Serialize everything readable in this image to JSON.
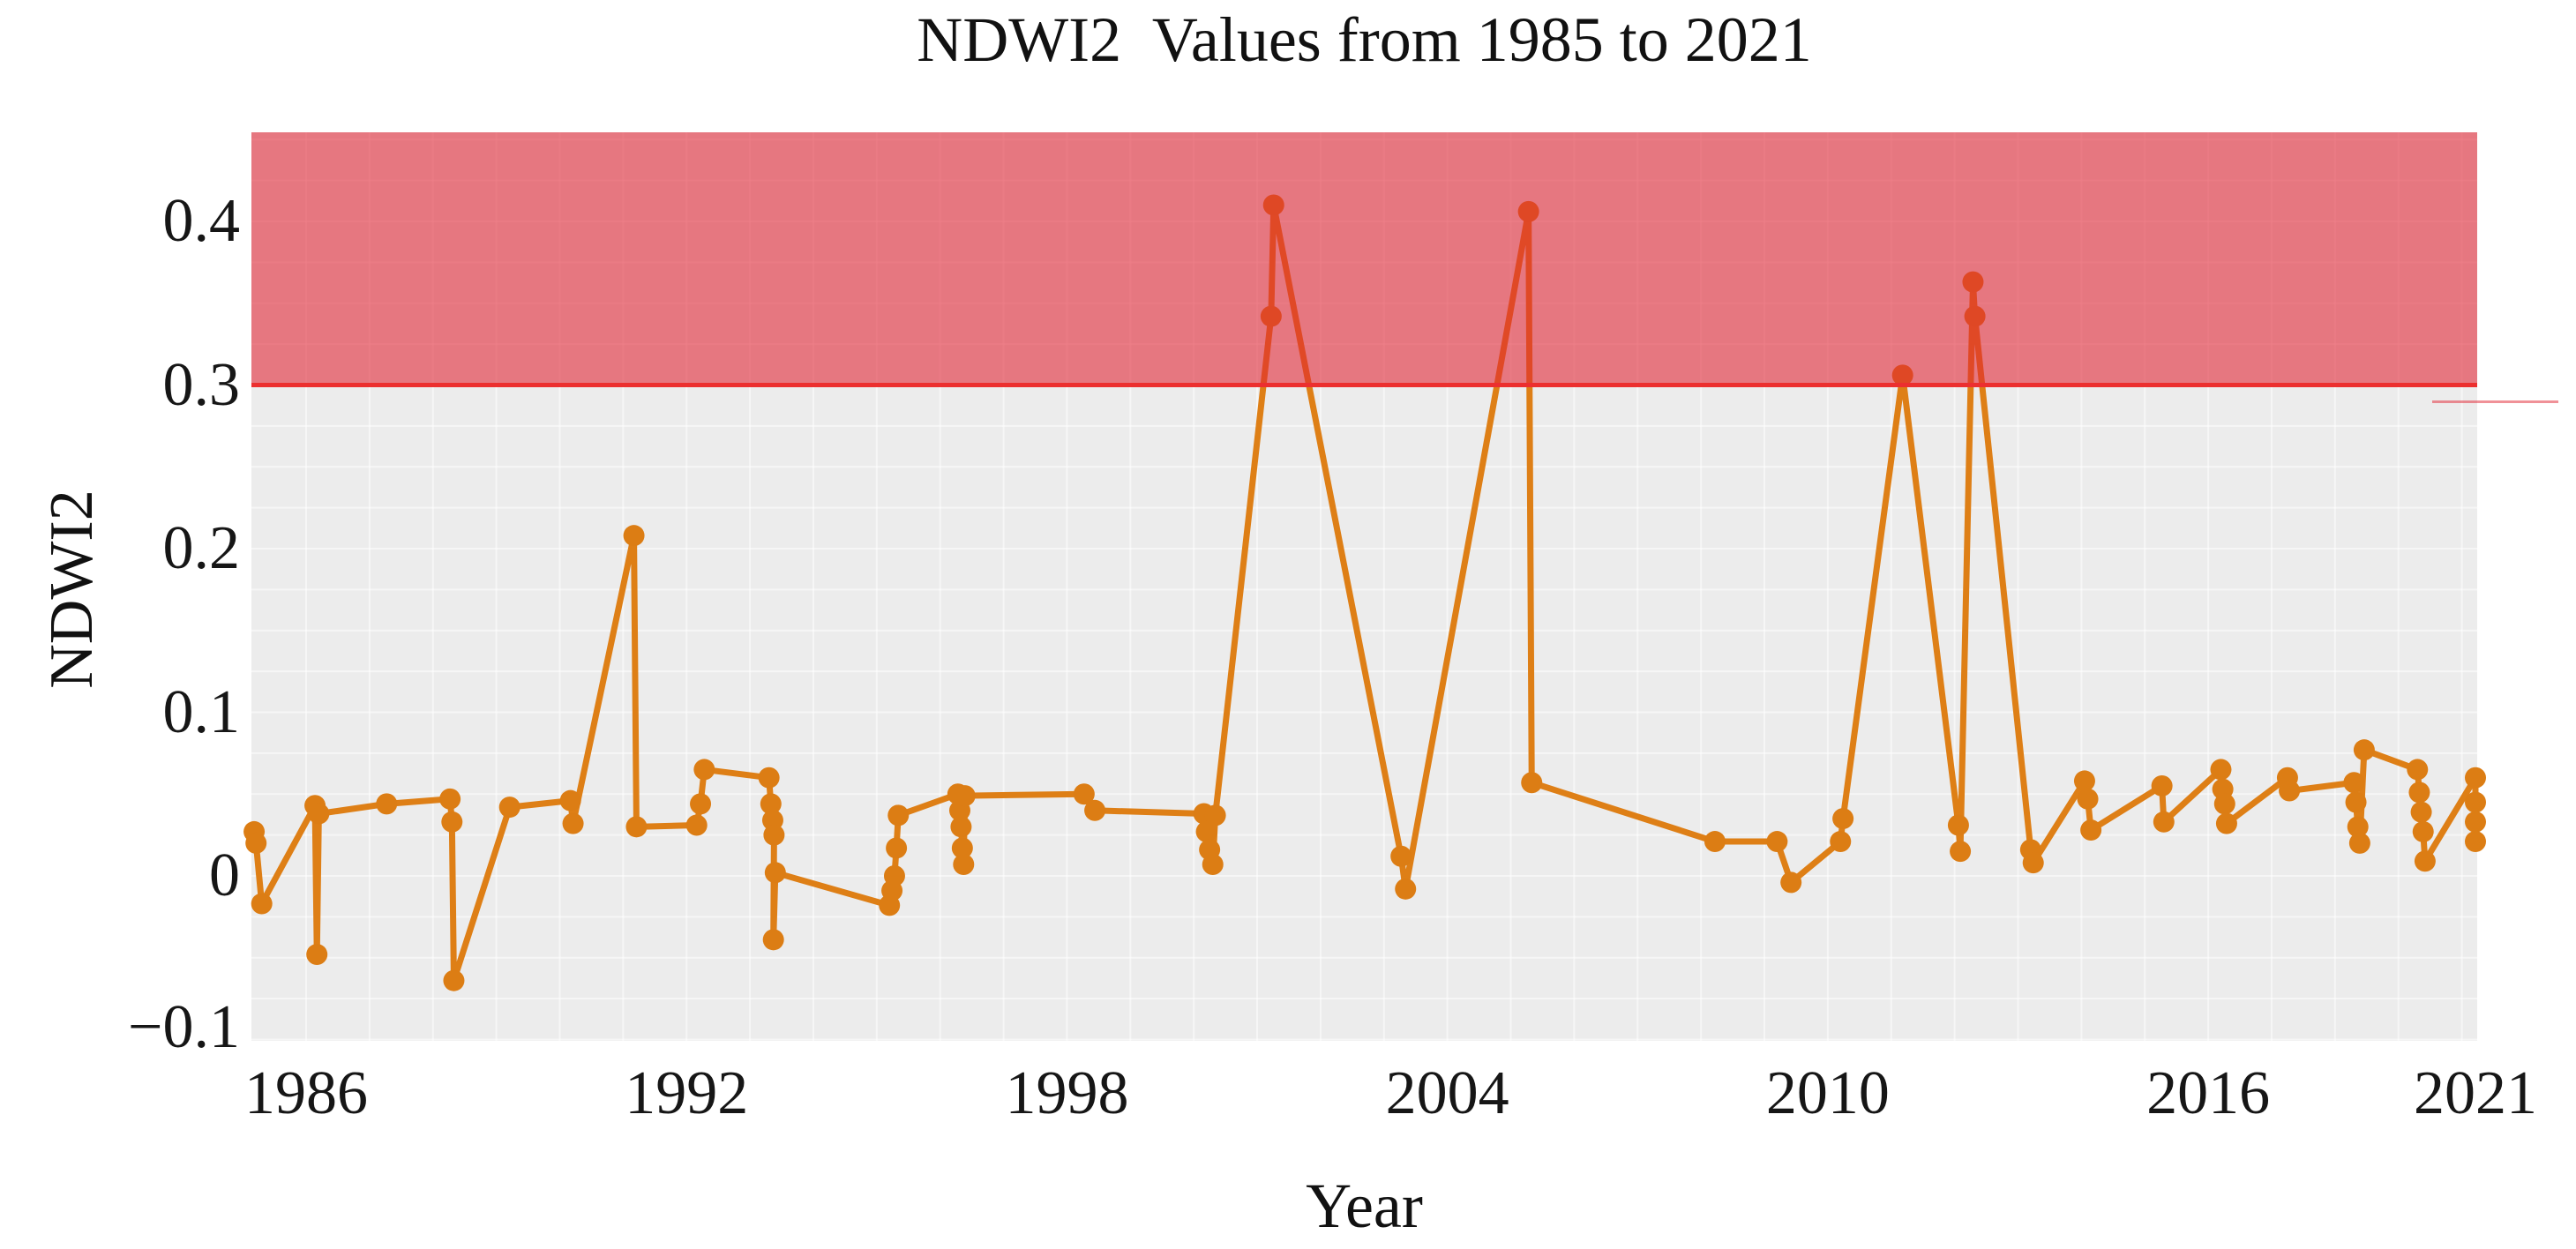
{
  "chart_data": {
    "type": "line",
    "title": "NDWI2  Values from 1985 to 2021",
    "xlabel": "Year",
    "ylabel": "NDWI2",
    "x_tick_labels": [
      "1986",
      "1992",
      "1998",
      "2004",
      "2010",
      "2016",
      "2021"
    ],
    "x_tick_years": [
      1986,
      1992,
      1998,
      2004,
      2010,
      2016,
      2021
    ],
    "y_ticks": [
      {
        "label": "0.4",
        "value": 0.4
      },
      {
        "label": "0.3",
        "value": 0.3
      },
      {
        "label": "0.2",
        "value": 0.2
      },
      {
        "label": "0.1",
        "value": 0.1
      },
      {
        "label": "0",
        "value": 0.0
      },
      {
        "label": "−0.1",
        "value": -0.1
      }
    ],
    "xlim": [
      1985.0,
      2021.05
    ],
    "ylim": [
      -0.101,
      0.454
    ],
    "grid": true,
    "legend_position": "none",
    "threshold": {
      "value": 0.3,
      "shaded_region": "above threshold"
    },
    "series": [
      {
        "name": "NDWI2",
        "points": [
          [
            1985.18,
            0.027
          ],
          [
            1985.21,
            0.02
          ],
          [
            1985.3,
            -0.017
          ],
          [
            1986.14,
            0.043
          ],
          [
            1986.17,
            -0.048
          ],
          [
            1986.2,
            0.038
          ],
          [
            1987.27,
            0.044
          ],
          [
            1988.27,
            0.047
          ],
          [
            1988.3,
            0.033
          ],
          [
            1988.33,
            -0.064
          ],
          [
            1989.21,
            0.042
          ],
          [
            1990.17,
            0.046
          ],
          [
            1990.21,
            0.032
          ],
          [
            1991.17,
            0.208
          ],
          [
            1991.21,
            0.03
          ],
          [
            1992.16,
            0.031
          ],
          [
            1992.22,
            0.044
          ],
          [
            1992.28,
            0.065
          ],
          [
            1993.3,
            0.06
          ],
          [
            1993.33,
            0.044
          ],
          [
            1993.36,
            0.034
          ],
          [
            1993.38,
            0.025
          ],
          [
            1993.37,
            -0.039
          ],
          [
            1993.4,
            0.002
          ],
          [
            1995.2,
            -0.018
          ],
          [
            1995.24,
            -0.009
          ],
          [
            1995.28,
            0.0
          ],
          [
            1995.31,
            0.017
          ],
          [
            1995.34,
            0.037
          ],
          [
            1996.28,
            0.05
          ],
          [
            1996.31,
            0.04
          ],
          [
            1996.33,
            0.03
          ],
          [
            1996.35,
            0.017
          ],
          [
            1996.37,
            0.007
          ],
          [
            1996.39,
            0.049
          ],
          [
            1998.27,
            0.05
          ],
          [
            1998.44,
            0.04
          ],
          [
            2000.16,
            0.038
          ],
          [
            2000.2,
            0.027
          ],
          [
            2000.25,
            0.016
          ],
          [
            2000.3,
            0.007
          ],
          [
            2000.34,
            0.037
          ],
          [
            2001.22,
            0.342
          ],
          [
            2001.26,
            0.41
          ],
          [
            2003.27,
            0.012
          ],
          [
            2003.34,
            -0.008
          ],
          [
            2005.28,
            0.406
          ],
          [
            2005.33,
            0.057
          ],
          [
            2008.22,
            0.021
          ],
          [
            2009.2,
            0.021
          ],
          [
            2009.42,
            -0.004
          ],
          [
            2010.2,
            0.021
          ],
          [
            2010.24,
            0.035
          ],
          [
            2011.18,
            0.306
          ],
          [
            2012.06,
            0.031
          ],
          [
            2012.09,
            0.015
          ],
          [
            2012.29,
            0.363
          ],
          [
            2012.32,
            0.342
          ],
          [
            2013.2,
            0.016
          ],
          [
            2013.24,
            0.008
          ],
          [
            2014.05,
            0.058
          ],
          [
            2014.1,
            0.047
          ],
          [
            2014.15,
            0.028
          ],
          [
            2015.27,
            0.055
          ],
          [
            2015.3,
            0.033
          ],
          [
            2016.2,
            0.065
          ],
          [
            2016.23,
            0.053
          ],
          [
            2016.26,
            0.044
          ],
          [
            2016.29,
            0.032
          ],
          [
            2017.25,
            0.06
          ],
          [
            2017.28,
            0.052
          ],
          [
            2018.3,
            0.057
          ],
          [
            2018.33,
            0.045
          ],
          [
            2018.36,
            0.03
          ],
          [
            2018.39,
            0.02
          ],
          [
            2018.46,
            0.077
          ],
          [
            2019.3,
            0.065
          ],
          [
            2019.33,
            0.051
          ],
          [
            2019.36,
            0.039
          ],
          [
            2019.39,
            0.027
          ],
          [
            2019.42,
            0.009
          ],
          [
            2021.0,
            0.06
          ],
          [
            2021.0,
            0.045
          ],
          [
            2021.0,
            0.033
          ],
          [
            2021.0,
            0.021
          ]
        ]
      }
    ]
  },
  "colors": {
    "line_orange": "#de7f16",
    "marker_orange": "#dc7d14",
    "panel_gray": "#ececec",
    "gridline_white": "rgba(255,255,255,0.55)",
    "threshold_band": "rgba(225,35,50,0.58)",
    "threshold_line": "#ec2f2f",
    "stray_red_line": "rgba(225,35,50,0.5)",
    "text": "#161616"
  }
}
